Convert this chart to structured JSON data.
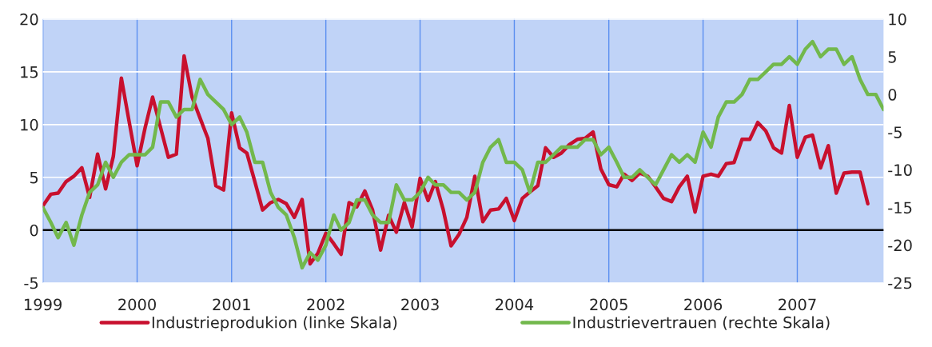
{
  "chart_data": {
    "type": "line",
    "x": [
      "1999-01",
      "1999-02",
      "1999-03",
      "1999-04",
      "1999-05",
      "1999-06",
      "1999-07",
      "1999-08",
      "1999-09",
      "1999-10",
      "1999-11",
      "1999-12",
      "2000-01",
      "2000-02",
      "2000-03",
      "2000-04",
      "2000-05",
      "2000-06",
      "2000-07",
      "2000-08",
      "2000-09",
      "2000-10",
      "2000-11",
      "2000-12",
      "2001-01",
      "2001-02",
      "2001-03",
      "2001-04",
      "2001-05",
      "2001-06",
      "2001-07",
      "2001-08",
      "2001-09",
      "2001-10",
      "2001-11",
      "2001-12",
      "2002-01",
      "2002-02",
      "2002-03",
      "2002-04",
      "2002-05",
      "2002-06",
      "2002-07",
      "2002-08",
      "2002-09",
      "2002-10",
      "2002-11",
      "2002-12",
      "2003-01",
      "2003-02",
      "2003-03",
      "2003-04",
      "2003-05",
      "2003-06",
      "2003-07",
      "2003-08",
      "2003-09",
      "2003-10",
      "2003-11",
      "2003-12",
      "2004-01",
      "2004-02",
      "2004-03",
      "2004-04",
      "2004-05",
      "2004-06",
      "2004-07",
      "2004-08",
      "2004-09",
      "2004-10",
      "2004-11",
      "2004-12",
      "2005-01",
      "2005-02",
      "2005-03",
      "2005-04",
      "2005-05",
      "2005-06",
      "2005-07",
      "2005-08",
      "2005-09",
      "2005-10",
      "2005-11",
      "2005-12",
      "2006-01",
      "2006-02",
      "2006-03",
      "2006-04",
      "2006-05",
      "2006-06",
      "2006-07",
      "2006-08",
      "2006-09",
      "2006-10",
      "2006-11",
      "2006-12",
      "2007-01",
      "2007-02",
      "2007-03",
      "2007-04",
      "2007-05",
      "2007-06",
      "2007-07",
      "2007-08",
      "2007-09",
      "2007-10",
      "2007-11",
      "2007-12"
    ],
    "series": [
      {
        "name": "Industrieprodukion (linke Skala)",
        "color": "#c8102e",
        "values": [
          2.3,
          3.4,
          3.5,
          4.6,
          5.1,
          5.9,
          3.1,
          7.2,
          3.9,
          7.0,
          14.4,
          10.3,
          6.1,
          9.7,
          12.6,
          9.7,
          6.9,
          7.2,
          16.5,
          12.6,
          10.6,
          8.7,
          4.2,
          3.8,
          11.1,
          7.8,
          7.3,
          4.6,
          1.9,
          2.6,
          2.9,
          2.5,
          1.2,
          2.9,
          -3.2,
          -2.2,
          -0.3,
          -1.3,
          -2.3,
          2.6,
          2.2,
          3.7,
          1.9,
          -1.9,
          1.4,
          -0.2,
          2.6,
          0.3,
          4.9,
          2.8,
          4.6,
          1.9,
          -1.5,
          -0.4,
          1.2,
          5.1,
          0.8,
          1.9,
          2.0,
          3.0,
          0.9,
          3.0,
          3.6,
          4.2,
          7.8,
          6.9,
          7.3,
          8.1,
          8.6,
          8.7,
          9.3,
          5.8,
          4.3,
          4.1,
          5.3,
          4.7,
          5.4,
          5.1,
          4.1,
          3.0,
          2.7,
          4.1,
          5.1,
          1.7,
          5.1,
          5.3,
          5.1,
          6.3,
          6.4,
          8.6,
          8.6,
          10.2,
          9.4,
          7.8,
          7.3,
          11.8,
          6.9,
          8.8,
          9.0,
          5.9,
          8.0,
          3.5,
          5.4,
          5.5,
          5.5,
          2.5,
          null,
          null
        ]
      },
      {
        "name": "Industrievertrauen (rechte Skala)",
        "color": "#72b84c",
        "axis": "y2",
        "values": [
          -15,
          -17,
          -19,
          -17,
          -20,
          -16,
          -13,
          -12,
          -9,
          -11,
          -9,
          -8,
          -8,
          -8,
          -7,
          -1,
          -1,
          -3,
          -2,
          -2,
          2,
          0,
          -1,
          -2,
          -4,
          -3,
          -5,
          -9,
          -9,
          -13,
          -15,
          -16,
          -19,
          -23,
          -21,
          -22,
          -20,
          -16,
          -18,
          -17,
          -14,
          -14,
          -16,
          -17,
          -17,
          -12,
          -14,
          -14,
          -13,
          -11,
          -12,
          -12,
          -13,
          -13,
          -14,
          -13,
          -9,
          -7,
          -6,
          -9,
          -9,
          -10,
          -13,
          -9,
          -9,
          -8,
          -7,
          -7,
          -7,
          -6,
          -6,
          -8,
          -7,
          -9,
          -11,
          -11,
          -10,
          -11,
          -12,
          -10,
          -8,
          -9,
          -8,
          -9,
          -5,
          -7,
          -3,
          -1,
          -1,
          0,
          2,
          2,
          3,
          4,
          4,
          5,
          4,
          6,
          7,
          5,
          6,
          6,
          4,
          5,
          2,
          0,
          0,
          -2
        ]
      }
    ],
    "xlim": [
      "1999-01",
      "2007-12"
    ],
    "xticks": [
      {
        "value": "1999-01",
        "label": "1999"
      },
      {
        "value": "2000-01",
        "label": "2000"
      },
      {
        "value": "2001-01",
        "label": "2001"
      },
      {
        "value": "2002-01",
        "label": "2002"
      },
      {
        "value": "2003-01",
        "label": "2003"
      },
      {
        "value": "2004-01",
        "label": "2004"
      },
      {
        "value": "2005-01",
        "label": "2005"
      },
      {
        "value": "2006-01",
        "label": "2006"
      },
      {
        "value": "2007-01",
        "label": "2007"
      }
    ],
    "ylim": [
      -5,
      20
    ],
    "yticks": [
      -5,
      0,
      5,
      10,
      15,
      20
    ],
    "y2lim": [
      -25,
      10
    ],
    "y2ticks": [
      -25,
      -20,
      -15,
      -10,
      -5,
      0,
      5,
      10
    ],
    "ref_lines": [
      {
        "axis": "y",
        "value": 0,
        "color": "#000000"
      }
    ],
    "grid": true,
    "legend": "bottom",
    "line_style": "solid",
    "marker": "none"
  }
}
